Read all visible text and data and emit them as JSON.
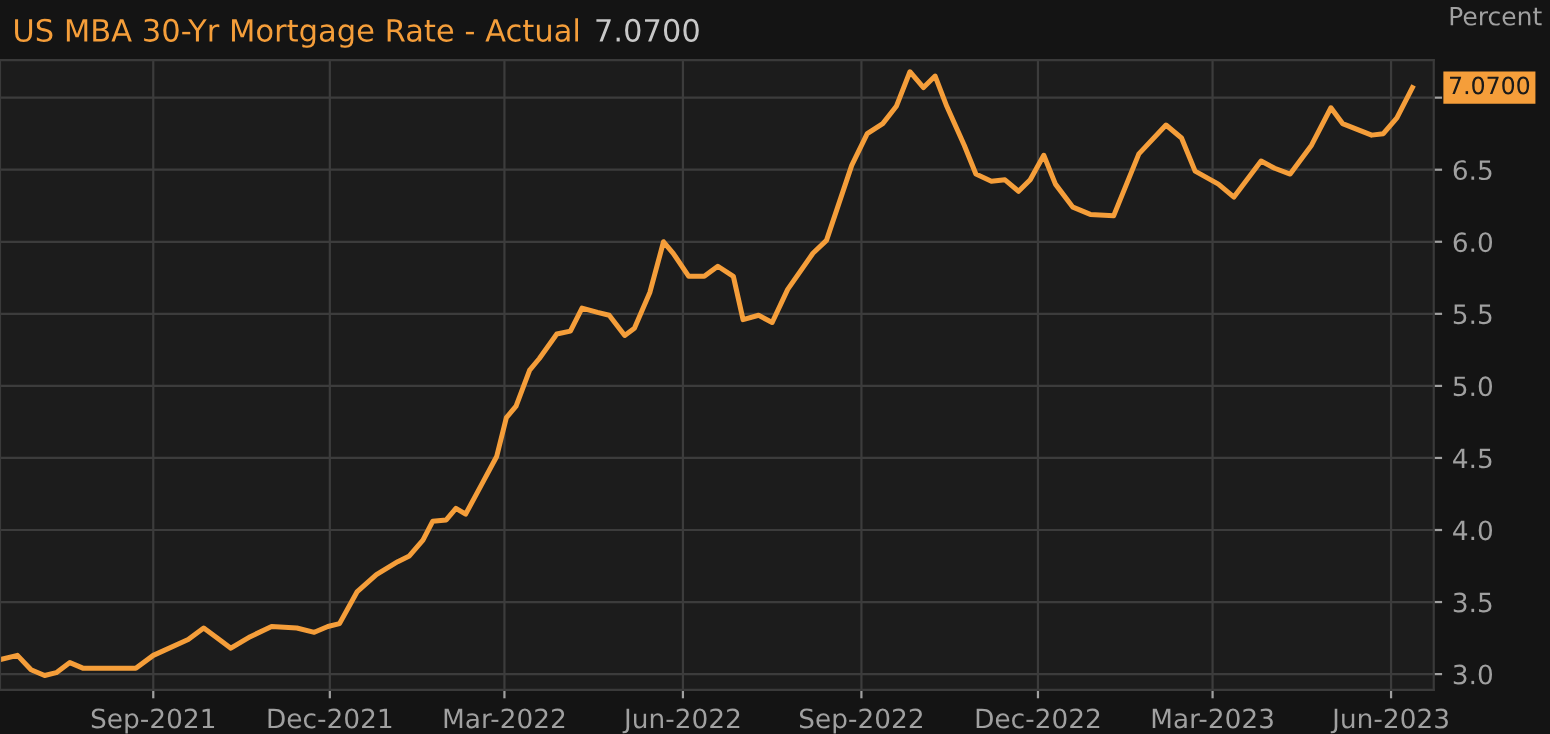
{
  "chart_data": {
    "type": "line",
    "title": "US MBA 30-Yr Mortgage Rate - Actual",
    "subtitle": "7.0700",
    "ylabel": "Percent",
    "x": [
      "2021-06-14",
      "2021-06-23",
      "2021-06-30",
      "2021-07-07",
      "2021-07-13",
      "2021-07-20",
      "2021-07-27",
      "2021-08-23",
      "2021-09-01",
      "2021-09-19",
      "2021-09-27",
      "2021-10-05",
      "2021-10-11",
      "2021-10-21",
      "2021-11-01",
      "2021-11-14",
      "2021-11-23",
      "2021-11-30",
      "2021-12-06",
      "2021-12-15",
      "2021-12-25",
      "2022-01-05",
      "2022-01-11",
      "2022-01-18",
      "2022-01-23",
      "2022-01-30",
      "2022-02-04",
      "2022-02-09",
      "2022-02-17",
      "2022-02-25",
      "2022-03-02",
      "2022-03-07",
      "2022-03-14",
      "2022-03-19",
      "2022-03-28",
      "2022-04-04",
      "2022-04-10",
      "2022-04-18",
      "2022-04-24",
      "2022-05-02",
      "2022-05-07",
      "2022-05-15",
      "2022-05-22",
      "2022-05-27",
      "2022-06-04",
      "2022-06-12",
      "2022-06-19",
      "2022-06-27",
      "2022-07-02",
      "2022-07-10",
      "2022-07-17",
      "2022-07-25",
      "2022-08-07",
      "2022-08-14",
      "2022-08-27",
      "2022-09-04",
      "2022-09-12",
      "2022-09-19",
      "2022-09-26",
      "2022-10-03",
      "2022-10-09",
      "2022-10-15",
      "2022-10-24",
      "2022-10-30",
      "2022-11-07",
      "2022-11-14",
      "2022-11-21",
      "2022-11-27",
      "2022-12-04",
      "2022-12-10",
      "2022-12-19",
      "2022-12-28",
      "2023-01-09",
      "2023-01-22",
      "2023-02-05",
      "2023-02-13",
      "2023-02-20",
      "2023-03-04",
      "2023-03-12",
      "2023-03-26",
      "2023-04-02",
      "2023-04-10",
      "2023-04-21",
      "2023-05-01",
      "2023-05-07",
      "2023-05-22",
      "2023-05-28",
      "2023-06-04",
      "2023-06-12"
    ],
    "series": [
      {
        "color": "#f59e3a",
        "values": [
          3.1,
          3.13,
          3.03,
          2.99,
          3.01,
          3.08,
          3.04,
          3.04,
          3.13,
          3.24,
          3.32,
          3.24,
          3.18,
          3.26,
          3.33,
          3.32,
          3.29,
          3.33,
          3.35,
          3.57,
          3.69,
          3.78,
          3.82,
          3.93,
          4.06,
          4.07,
          4.15,
          4.11,
          4.31,
          4.51,
          4.78,
          4.86,
          5.11,
          5.19,
          5.36,
          5.38,
          5.54,
          5.51,
          5.49,
          5.35,
          5.4,
          5.65,
          6.0,
          5.92,
          5.76,
          5.76,
          5.83,
          5.76,
          5.46,
          5.49,
          5.44,
          5.67,
          5.92,
          6.01,
          6.53,
          6.75,
          6.82,
          6.94,
          7.18,
          7.07,
          7.15,
          6.94,
          6.67,
          6.47,
          6.42,
          6.43,
          6.35,
          6.43,
          6.6,
          6.4,
          6.24,
          6.19,
          6.18,
          6.61,
          6.81,
          6.72,
          6.49,
          6.4,
          6.31,
          6.56,
          6.51,
          6.47,
          6.67,
          6.93,
          6.82,
          6.74,
          6.75,
          6.86,
          7.07
        ]
      }
    ],
    "xlim": [
      "2021-06-14",
      "2023-06-23"
    ],
    "ylim": [
      2.89,
      7.26
    ],
    "xticks": [
      {
        "value": "2021-09-01",
        "label": "Sep-2021"
      },
      {
        "value": "2021-12-01",
        "label": "Dec-2021"
      },
      {
        "value": "2022-03-01",
        "label": "Mar-2022"
      },
      {
        "value": "2022-06-01",
        "label": "Jun-2022"
      },
      {
        "value": "2022-09-01",
        "label": "Sep-2022"
      },
      {
        "value": "2022-12-01",
        "label": "Dec-2022"
      },
      {
        "value": "2023-03-01",
        "label": "Mar-2023"
      },
      {
        "value": "2023-06-01",
        "label": "Jun-2023"
      }
    ],
    "yticks": [
      {
        "value": 3,
        "label": "3.0"
      },
      3.5,
      {
        "value": 4,
        "label": "4.0"
      },
      4.5,
      {
        "value": 5,
        "label": "5.0"
      },
      5.5,
      {
        "value": 6,
        "label": "6.0"
      },
      6.5,
      {
        "value": 7,
        "label": null
      }
    ],
    "annotations": [
      {
        "text": "7.0700",
        "x": "2023-06-12",
        "y": 7.07
      }
    ],
    "grid": true,
    "marker": "none",
    "line_style": "solid"
  }
}
